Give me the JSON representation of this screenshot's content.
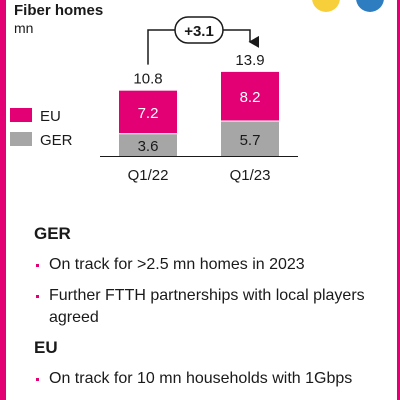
{
  "chart_data": {
    "type": "bar",
    "stacked": true,
    "title": "Fiber homes",
    "unit": "mn",
    "categories": [
      "Q1/22",
      "Q1/23"
    ],
    "series": [
      {
        "name": "GER",
        "values": [
          3.6,
          5.7
        ],
        "color": "#a6a6a6"
      },
      {
        "name": "EU",
        "values": [
          7.2,
          8.2
        ],
        "color": "#e20074"
      }
    ],
    "totals": [
      "10.8",
      "13.9"
    ],
    "segment_labels": {
      "GER": [
        "3.6",
        "5.7"
      ],
      "EU": [
        "7.2",
        "8.2"
      ]
    },
    "delta_label": "+3.1",
    "legend": [
      "EU",
      "GER"
    ],
    "legend_position": "left",
    "ylim": [
      0,
      15
    ]
  },
  "sections": [
    {
      "heading": "GER",
      "bullets": [
        "On track for >2.5 mn homes in 2023",
        "Further FTTH partnerships with local players agreed"
      ]
    },
    {
      "heading": "EU",
      "bullets": [
        "On track for 10 mn households with 1Gbps"
      ]
    }
  ],
  "colors": {
    "accent": "#e20074",
    "gray": "#a6a6a6"
  }
}
